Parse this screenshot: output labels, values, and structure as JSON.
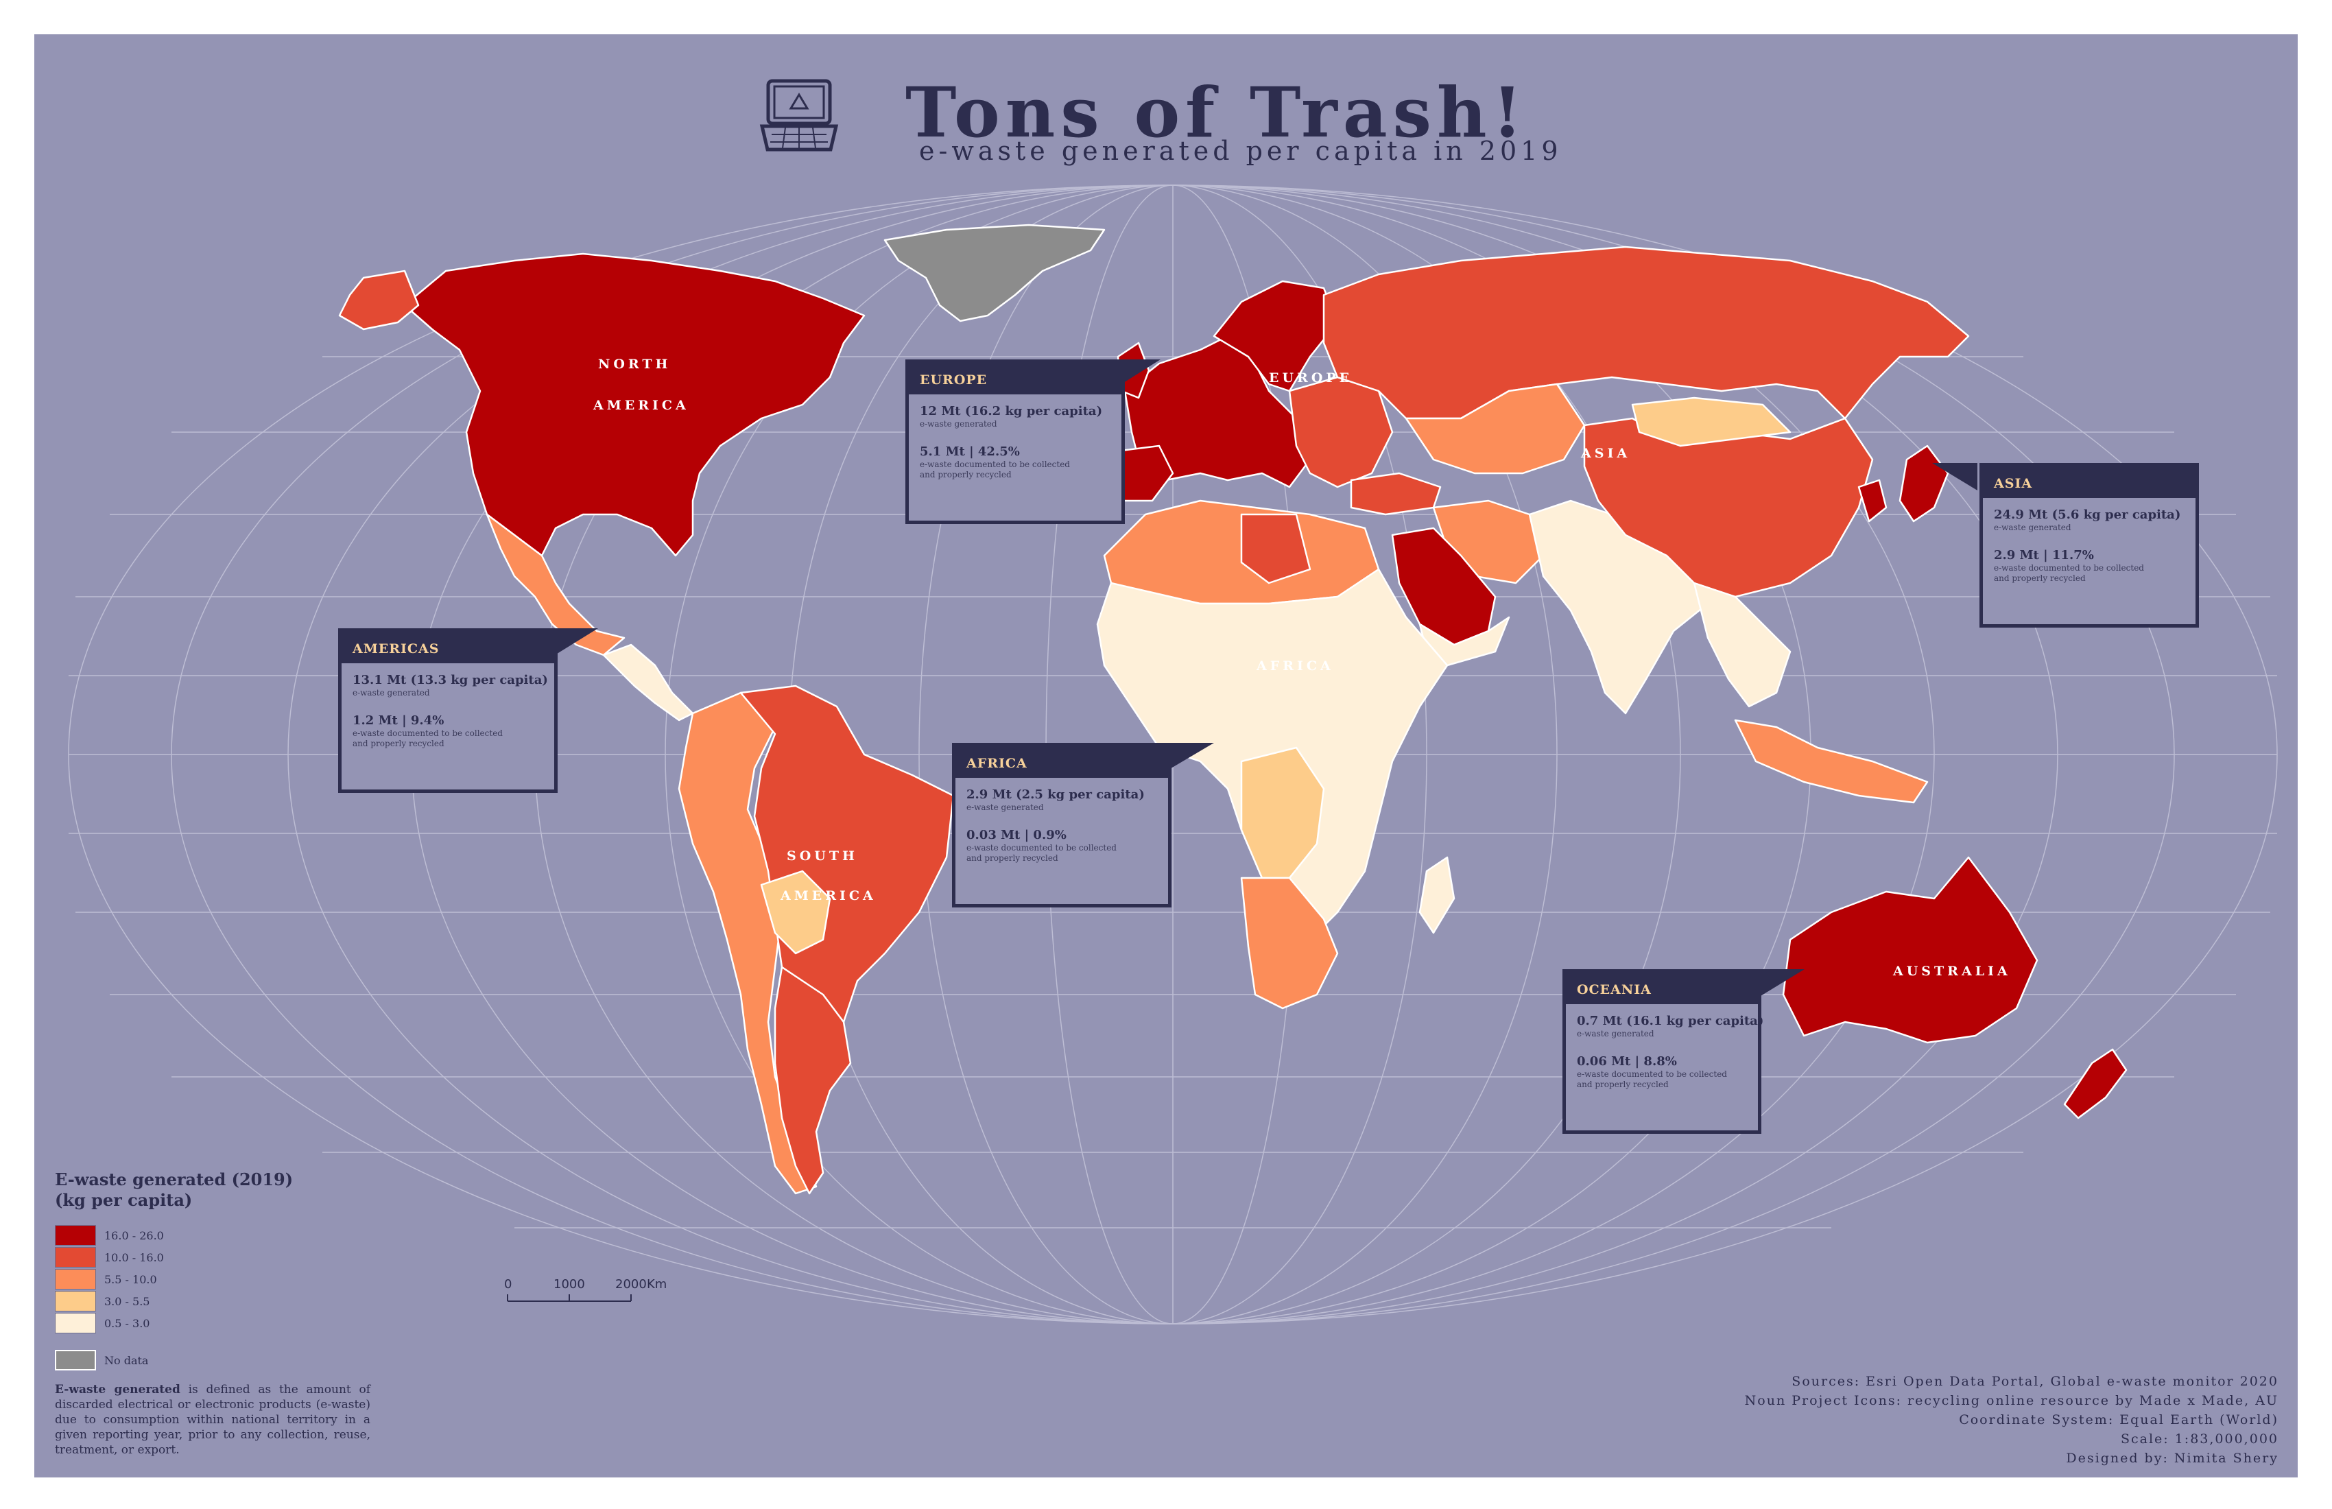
{
  "header": {
    "title": "Tons of Trash!",
    "subtitle": "e-waste generated per capita in 2019",
    "icon": "laptop-recycle-icon"
  },
  "colors": {
    "ocean": "#9494b4",
    "dark_text": "#2d2d4e",
    "no_data": "#8c8c8c",
    "class_16_26": "#b50004",
    "class_10_16": "#e34a33",
    "class_5_10": "#fc8d59",
    "class_3_5": "#fdcc8a",
    "class_05_3": "#fef0d9"
  },
  "region_labels": {
    "north_america_line1": "NORTH",
    "north_america_line2": "AMERICA",
    "south_america_line1": "SOUTH",
    "south_america_line2": "AMERICA",
    "europe": "EUROPE",
    "asia": "ASIA",
    "africa": "AFRICA",
    "australia": "AUSTRALIA"
  },
  "cards": {
    "europe": {
      "heading": "EUROPE",
      "generated": "12 Mt (16.2 kg per capita)",
      "generated_note": "e-waste generated",
      "collected": "5.1 Mt | 42.5%",
      "collected_note_1": "e-waste documented to be collected",
      "collected_note_2": "and properly recycled"
    },
    "americas": {
      "heading": "AMERICAS",
      "generated": "13.1 Mt (13.3 kg per capita)",
      "generated_note": "e-waste generated",
      "collected": "1.2 Mt | 9.4%",
      "collected_note_1": "e-waste documented to be collected",
      "collected_note_2": "and properly recycled"
    },
    "asia": {
      "heading": "ASIA",
      "generated": "24.9 Mt (5.6 kg per capita)",
      "generated_note": "e-waste generated",
      "collected": "2.9 Mt | 11.7%",
      "collected_note_1": "e-waste documented to be collected",
      "collected_note_2": "and properly recycled"
    },
    "africa": {
      "heading": "AFRICA",
      "generated": "2.9 Mt (2.5 kg per capita)",
      "generated_note": "e-waste generated",
      "collected": "0.03 Mt | 0.9%",
      "collected_note_1": "e-waste documented to be collected",
      "collected_note_2": "and properly recycled"
    },
    "oceania": {
      "heading": "OCEANIA",
      "generated": "0.7 Mt (16.1 kg per capita)",
      "generated_note": "e-waste generated",
      "collected": "0.06 Mt | 8.8%",
      "collected_note_1": "e-waste documented to be collected",
      "collected_note_2": "and properly recycled"
    }
  },
  "legend": {
    "title_line1": "E-waste generated (2019)",
    "title_line2": "(kg per capita)",
    "classes": [
      "16.0 - 26.0",
      "10.0 - 16.0",
      "5.5 - 10.0",
      "3.0 - 5.5",
      "0.5 - 3.0"
    ],
    "no_data": "No data"
  },
  "scale": {
    "ticks": [
      "0",
      "1000",
      "2000"
    ],
    "unit": "Km"
  },
  "definition": {
    "term": "E-waste generated",
    "text": " is defined as the amount of discarded electrical or electronic products (e-waste) due to consumption within national territory in a given reporting year, prior to any collection, reuse, treatment, or export."
  },
  "sources": {
    "line1": "Sources: Esri Open Data Portal, Global e-waste monitor 2020",
    "line2": "Noun Project Icons: recycling online resource by Made x Made, AU",
    "line3": "Coordinate System: Equal Earth (World)",
    "line4": "Scale: 1:83,000,000",
    "line5": "Designed by: Nimita Shery"
  }
}
